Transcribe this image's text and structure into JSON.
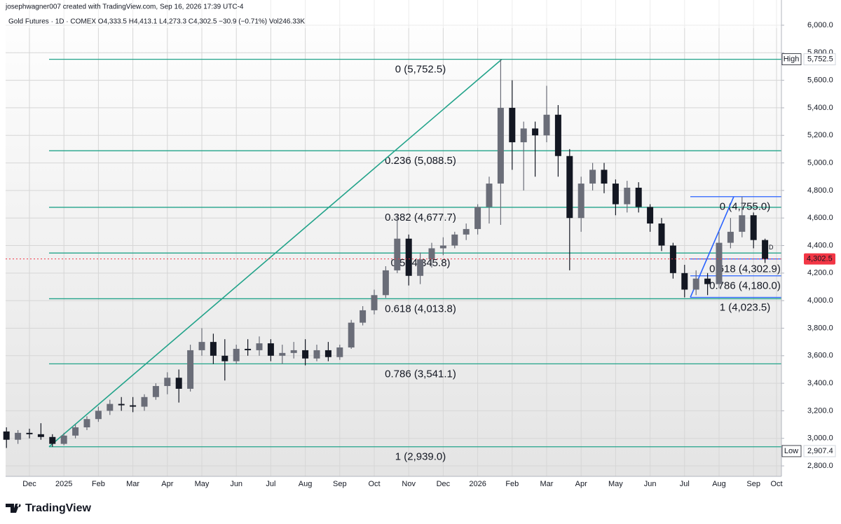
{
  "header": {
    "author_line": "josephwagner007 created with TradingView.com, Sep 16, 2026 17:39 UTC-4",
    "symbol_line": "Gold Futures · 1D · COMEX  O4,333.5  H4,413.1  L4,273.3  C4,302.5  −30.9 (−0.71%)  Vol246.33K"
  },
  "chart_data": {
    "type": "candlestick",
    "categories": [
      null,
      null,
      "Dec",
      null,
      null,
      "2025",
      null,
      null,
      "Feb",
      null,
      null,
      "Mar",
      null,
      null,
      "Apr",
      null,
      null,
      "May",
      null,
      null,
      "Jun",
      null,
      null,
      "Jul",
      null,
      null,
      "Aug",
      null,
      null,
      "Sep",
      null,
      null,
      "Oct",
      null,
      null,
      "Nov",
      null,
      null,
      "Dec",
      null,
      null,
      "2026",
      null,
      null,
      "Feb",
      null,
      null,
      "Mar",
      null,
      null,
      "Apr",
      null,
      null,
      "May",
      null,
      null,
      "Jun",
      null,
      null,
      "Jul",
      null,
      null,
      "Aug",
      null,
      null,
      "Sep",
      null,
      "Oct"
    ],
    "open": [
      3050,
      2990,
      3040,
      3030,
      3010,
      2960,
      3020,
      3080,
      3140,
      3200,
      3250,
      3240,
      3230,
      3300,
      3380,
      3440,
      3360,
      3640,
      3700,
      3600,
      3560,
      3650,
      3640,
      3690,
      3600,
      3620,
      3640,
      3580,
      3640,
      3590,
      3660,
      3840,
      3930,
      4040,
      4220,
      4450,
      4180,
      4300,
      4380,
      4400,
      4480,
      4520,
      4680,
      4850,
      5400,
      5150,
      5250,
      5200,
      5350,
      5050,
      4600,
      4850,
      4950,
      4850,
      4700,
      4820,
      4680,
      4560,
      4400,
      4200,
      4080,
      4160,
      4120,
      4420,
      4500,
      4620,
      4440,
      null
    ],
    "high": [
      3080,
      3060,
      3070,
      3110,
      3030,
      3040,
      3100,
      3160,
      3230,
      3280,
      3300,
      3300,
      3320,
      3400,
      3480,
      3500,
      3680,
      3800,
      3760,
      3720,
      3680,
      3720,
      3740,
      3720,
      3680,
      3700,
      3720,
      3680,
      3700,
      3680,
      3860,
      3960,
      4080,
      4250,
      4620,
      4480,
      4350,
      4420,
      4460,
      4500,
      4560,
      4700,
      4900,
      5752.5,
      5600,
      5300,
      5300,
      5560,
      5420,
      5100,
      4900,
      5000,
      5000,
      4880,
      4870,
      4860,
      4700,
      4600,
      4420,
      4260,
      4220,
      4200,
      4500,
      4600,
      4755,
      4640,
      4450,
      null
    ],
    "low": [
      2930,
      2960,
      3000,
      2990,
      2939,
      2950,
      3000,
      3060,
      3120,
      3170,
      3200,
      3190,
      3200,
      3280,
      3320,
      3260,
      3340,
      3600,
      3540,
      3420,
      3540,
      3600,
      3600,
      3560,
      3540,
      3580,
      3530,
      3560,
      3560,
      3570,
      3650,
      3820,
      3900,
      4020,
      4200,
      4110,
      4120,
      4240,
      4330,
      4380,
      4440,
      4480,
      4560,
      4550,
      4950,
      4800,
      4900,
      5150,
      4900,
      4220,
      4500,
      4800,
      4780,
      4620,
      4640,
      4640,
      4500,
      4360,
      4160,
      4023.5,
      4040,
      4040,
      4090,
      4380,
      4460,
      4380,
      4273.3,
      null
    ],
    "close": [
      2990,
      3040,
      3030,
      3010,
      2960,
      3020,
      3080,
      3140,
      3200,
      3250,
      3240,
      3230,
      3300,
      3380,
      3440,
      3360,
      3640,
      3700,
      3600,
      3560,
      3650,
      3640,
      3690,
      3600,
      3620,
      3640,
      3580,
      3640,
      3590,
      3660,
      3840,
      3930,
      4040,
      4220,
      4450,
      4180,
      4300,
      4380,
      4400,
      4480,
      4520,
      4680,
      4850,
      5400,
      5150,
      5250,
      5200,
      5350,
      5050,
      4600,
      4850,
      4950,
      4850,
      4700,
      4820,
      4680,
      4560,
      4400,
      4200,
      4080,
      4160,
      4120,
      4420,
      4500,
      4620,
      4440,
      4302.5,
      null
    ],
    "up_color": "#6a6d78",
    "down_color": "#131722",
    "ylim": [
      2724,
      6183
    ],
    "yticks": [
      {
        "value": 2800,
        "label": "2,800.0"
      },
      {
        "value": 3000,
        "label": "3,000.0"
      },
      {
        "value": 3200,
        "label": "3,200.0"
      },
      {
        "value": 3400,
        "label": "3,400.0"
      },
      {
        "value": 3600,
        "label": "3,600.0"
      },
      {
        "value": 3800,
        "label": "3,800.0"
      },
      {
        "value": 4000,
        "label": "4,000.0"
      },
      {
        "value": 4200,
        "label": "4,200.0"
      },
      {
        "value": 4400,
        "label": "4,400.0"
      },
      {
        "value": 4600,
        "label": "4,600.0"
      },
      {
        "value": 4800,
        "label": "4,800.0"
      },
      {
        "value": 5000,
        "label": "5,000.0"
      },
      {
        "value": 5200,
        "label": "5,200.0"
      },
      {
        "value": 5400,
        "label": "5,400.0"
      },
      {
        "value": 5600,
        "label": "5,600.0"
      },
      {
        "value": 5800,
        "label": "5,800.0"
      },
      {
        "value": 6000,
        "label": "6,000.0"
      }
    ],
    "grid": true,
    "price_tags": [
      {
        "value": 5752.5,
        "label": "5,752.5",
        "tag": "High"
      },
      {
        "value": 2907.4,
        "label": "2,907.4",
        "tag": "Low"
      }
    ],
    "last_price": {
      "value": 4302.5,
      "label": "4,302.5",
      "color": "#f23645",
      "marker": "D"
    },
    "fib_major": {
      "color": "#22a38a",
      "levels": [
        {
          "value": 5752.5,
          "label": "0 (5,752.5)"
        },
        {
          "value": 5088.5,
          "label": "0.236 (5,088.5)"
        },
        {
          "value": 4677.7,
          "label": "0.382 (4,677.7)"
        },
        {
          "value": 4345.8,
          "label": "0.5 (4,345.8)"
        },
        {
          "value": 4013.8,
          "label": "0.618 (4,013.8)"
        },
        {
          "value": 3541.1,
          "label": "0.786 (3,541.1)"
        },
        {
          "value": 2939.0,
          "label": "1 (2,939.0)"
        }
      ]
    },
    "fib_minor": {
      "color": "#2962ff",
      "levels": [
        {
          "value": 4755.0,
          "label": "0 (4,755.0)"
        },
        {
          "value": 4302.9,
          "label": "0.618 (4,302.9)"
        },
        {
          "value": 4180.0,
          "label": "0.786 (4,180.0)"
        },
        {
          "value": 4023.5,
          "label": "1 (4,023.5)"
        }
      ]
    }
  },
  "footer": {
    "brand": "TradingView"
  }
}
